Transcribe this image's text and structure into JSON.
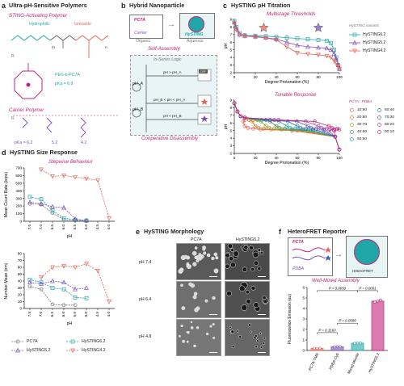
{
  "panel_a": {
    "label": "a",
    "title": "Ultra-pH-Sensitive Polymers",
    "sub1": "STING-Activating Polymer",
    "hydrophilic": "Hydrophilic",
    "ionizable": "Ionizable",
    "m": "m",
    "n": "n",
    "r1": "R",
    "r2": "R",
    "peg_label": "PEG-b-PC7A",
    "pka": "pKa = 6.9",
    "sub2": "Carrier Polymer",
    "pka_vals": [
      "pKa = 6.2",
      "5.2",
      "4.2"
    ]
  },
  "panel_b": {
    "label": "b",
    "title": "Hybrid Nanoparticle",
    "pc7a": "PC7A",
    "carrier": "Carrier",
    "organic": "Organic",
    "aqueous": "Aqueous",
    "hysting": "HySTING",
    "self_assembly": "Self-Assembly",
    "in_series": "In-Series Logic",
    "pha": "pH_A",
    "phb": "pH_B",
    "cond1": "pH > pH_A",
    "cond2": "pH_B < pH < pH_A",
    "cond3": "pH < pH_B",
    "off": "OFF",
    "coop": "Cooperative Disassembly"
  },
  "panel_c": {
    "label": "c",
    "title": "HySTING pH Titration",
    "sub1": "Multistage Thresholds",
    "sub2": "Tunable Response",
    "legend1_title": "HySTING variants",
    "legend1": [
      "HySTING6.2",
      "HySTING5.2",
      "HySTING4.2"
    ],
    "legend2_title": "PC7A : PDBA",
    "legend2": [
      "10:90",
      "20:80",
      "30:70",
      "40:60",
      "50:50",
      "60:40",
      "70:30",
      "80:20",
      "90:10"
    ]
  },
  "panel_d": {
    "label": "d",
    "title": "HySTING Size Response",
    "sub": "Stepwise Behaviour",
    "legend": [
      "PC7A",
      "HySTING6.2",
      "HySTING5.2",
      "HySTING4.2"
    ]
  },
  "panel_e": {
    "label": "e",
    "title": "HySTING Morphology",
    "col1": "PC7A",
    "col2": "HySTING5.2",
    "rows": [
      "pH 7.4",
      "pH 6.4",
      "pH 4.8"
    ]
  },
  "panel_f": {
    "label": "f",
    "title": "HeteroFRET Reporter",
    "pc7a": "PC7A",
    "pdba": "PDBA",
    "heterofret": "HeteroFRET",
    "sub": "Well-Mixed Assembly"
  },
  "colors": {
    "magenta": "#c2247a",
    "salmon": "#e5655b",
    "teal": "#1fa7a7",
    "purple": "#7b4fb5",
    "gray": "#7a7a7a"
  },
  "chart_data": [
    {
      "id": "c1",
      "type": "line",
      "title": "Multistage Thresholds",
      "xlabel": "Degree Protonation (%)",
      "ylabel": "pH",
      "xlim": [
        0,
        100
      ],
      "ylim": [
        2,
        9
      ],
      "xticks": [
        0,
        20,
        40,
        60,
        80,
        100
      ],
      "yticks": [
        2,
        3,
        4,
        5,
        6,
        7,
        8,
        9
      ],
      "series": [
        {
          "name": "HySTING6.2",
          "color": "#1fa7a7",
          "marker": "square",
          "x": [
            0,
            2,
            5,
            10,
            20,
            30,
            40,
            50,
            60,
            70,
            80,
            88,
            92,
            95,
            97,
            99,
            100
          ],
          "y": [
            8.8,
            8.0,
            7.2,
            6.9,
            6.85,
            6.8,
            6.7,
            6.6,
            6.5,
            6.4,
            6.3,
            6.2,
            5.9,
            5.0,
            4.0,
            3.0,
            2.5
          ]
        },
        {
          "name": "HySTING5.2",
          "color": "#7b4fb5",
          "marker": "triangle",
          "x": [
            0,
            2,
            5,
            10,
            20,
            30,
            40,
            50,
            60,
            70,
            80,
            88,
            92,
            95,
            97,
            99,
            100
          ],
          "y": [
            8.6,
            7.8,
            7.0,
            6.85,
            6.75,
            6.6,
            6.4,
            6.0,
            5.6,
            5.4,
            5.3,
            5.2,
            5.0,
            4.5,
            3.8,
            3.0,
            2.5
          ]
        },
        {
          "name": "HySTING4.2",
          "color": "#e5655b",
          "marker": "triangle-down",
          "x": [
            0,
            2,
            5,
            10,
            20,
            30,
            40,
            50,
            60,
            70,
            80,
            88,
            92,
            95,
            97,
            99,
            100
          ],
          "y": [
            8.5,
            7.6,
            7.0,
            6.8,
            6.7,
            6.55,
            6.3,
            5.4,
            4.6,
            4.45,
            4.35,
            4.2,
            4.0,
            3.6,
            3.2,
            2.8,
            2.5
          ]
        }
      ]
    },
    {
      "id": "c2",
      "type": "line",
      "title": "Tunable Response",
      "xlabel": "Degree Protonation (%)",
      "ylabel": "pH",
      "xlim": [
        0,
        100
      ],
      "ylim": [
        2,
        9
      ],
      "xticks": [
        0,
        20,
        40,
        60,
        80,
        100
      ],
      "yticks": [
        2,
        3,
        4,
        5,
        6,
        7,
        8,
        9
      ],
      "series": [
        {
          "name": "10:90",
          "color": "#e5655b",
          "break": 10
        },
        {
          "name": "20:80",
          "color": "#d9762e",
          "break": 20
        },
        {
          "name": "30:70",
          "color": "#a89a2a",
          "break": 30
        },
        {
          "name": "40:60",
          "color": "#3f8f3f",
          "break": 40
        },
        {
          "name": "50:50",
          "color": "#1fa7a7",
          "break": 50
        },
        {
          "name": "60:40",
          "color": "#2f6fb0",
          "break": 60
        },
        {
          "name": "70:30",
          "color": "#5a4fb5",
          "break": 70
        },
        {
          "name": "80:20",
          "color": "#a040a0",
          "break": 80
        },
        {
          "name": "90:10",
          "color": "#c2247a",
          "break": 90
        }
      ]
    },
    {
      "id": "d1",
      "type": "line",
      "xlabel": "pH",
      "ylabel": "Mean Count Rate (kcps)",
      "categories": [
        "7.5",
        "7.0",
        "6.5",
        "6.0",
        "5.5",
        "5.0",
        "4.5",
        "4.0"
      ],
      "ylim": [
        0,
        700
      ],
      "yticks": [
        0,
        100,
        200,
        300,
        400,
        500,
        600,
        700
      ],
      "series": [
        {
          "name": "PC7A",
          "color": "#7a7a7a",
          "values": [
            230,
            220,
            110,
            20,
            10,
            5,
            null,
            null
          ]
        },
        {
          "name": "HySTING6.2",
          "color": "#1fa7a7",
          "values": [
            320,
            290,
            140,
            40,
            20,
            10,
            null,
            null
          ]
        },
        {
          "name": "HySTING5.2",
          "color": "#7b4fb5",
          "values": [
            250,
            230,
            190,
            180,
            30,
            10,
            null,
            null
          ]
        },
        {
          "name": "HySTING4.2",
          "color": "#e5655b",
          "values": [
            null,
            680,
            590,
            600,
            580,
            560,
            540,
            40
          ]
        }
      ]
    },
    {
      "id": "d2",
      "type": "line",
      "xlabel": "pH",
      "ylabel": "Number Mean (nm)",
      "categories": [
        "7.5",
        "7.0",
        "6.5",
        "6.0",
        "5.5",
        "5.0",
        "4.5",
        "4.0"
      ],
      "ylim": [
        0,
        80
      ],
      "yticks": [
        0,
        10,
        20,
        30,
        40,
        50,
        60,
        70,
        80
      ],
      "series": [
        {
          "name": "PC7A",
          "color": "#7a7a7a",
          "values": [
            32,
            28,
            6,
            5,
            5,
            null,
            null,
            null
          ]
        },
        {
          "name": "HySTING6.2",
          "color": "#1fa7a7",
          "values": [
            42,
            38,
            30,
            28,
            16,
            15,
            null,
            null
          ]
        },
        {
          "name": "HySTING5.2",
          "color": "#7b4fb5",
          "values": [
            38,
            36,
            40,
            38,
            28,
            30,
            null,
            null
          ]
        },
        {
          "name": "HySTING4.2",
          "color": "#e5655b",
          "values": [
            null,
            45,
            60,
            62,
            60,
            65,
            55,
            10
          ]
        }
      ]
    },
    {
      "id": "f1",
      "type": "bar",
      "ylabel": "Fluorescence Emission (au)",
      "categories": [
        "PC7A-TMR",
        "PDBA-Cy5",
        "Mixed Micelle",
        "HySTING5.2"
      ],
      "values": [
        0.2,
        0.35,
        0.7,
        4.7
      ],
      "colors": [
        "#e5655b",
        "#7b4fb5",
        "#1fa7a7",
        "#c2247a"
      ],
      "ylim": [
        0,
        6
      ],
      "yticks": [
        0,
        1,
        2,
        3,
        4,
        5,
        6
      ],
      "annotations": [
        "P = 0.0050",
        "P = 0.0001",
        "P = 0.0589",
        "P = 0.3163"
      ]
    }
  ]
}
